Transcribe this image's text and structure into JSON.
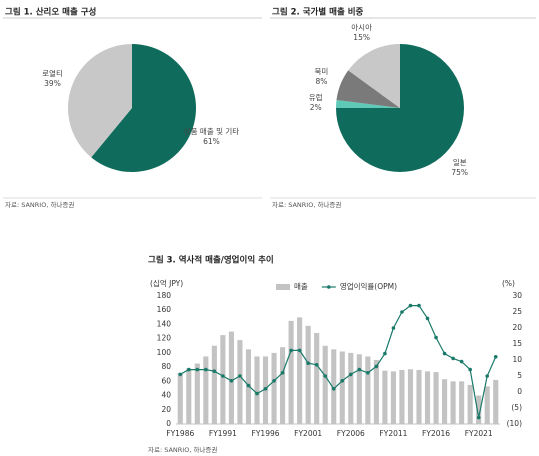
{
  "chart_data": [
    {
      "type": "pie",
      "title": "그림 1. 산리오 매출 구성",
      "source": "자료: SANRIO, 하나증권",
      "categories": [
        "상품 매출 및 기타",
        "로열티"
      ],
      "values": [
        61,
        39
      ],
      "value_labels": [
        "61%",
        "39%"
      ],
      "colors": [
        "#0f6b5c",
        "#c8c8c8"
      ]
    },
    {
      "type": "pie",
      "title": "그림 2. 국가별 매출 비중",
      "source": "자료: SANRIO, 하나증권",
      "categories": [
        "일본",
        "유럽",
        "북미",
        "아시아"
      ],
      "values": [
        75,
        2,
        8,
        15
      ],
      "value_labels": [
        "75%",
        "2%",
        "8%",
        "15%"
      ],
      "colors": [
        "#0f6b5c",
        "#5fc9b8",
        "#7a7a7a",
        "#c8c8c8"
      ]
    },
    {
      "type": "bar-line",
      "title": "그림 3. 역사적 매출/영업이익 추이",
      "source": "자료: SANRIO, 하나증권",
      "ylabel": "(십억 JPY)",
      "y2label": "(%)",
      "categories": [
        "FY1986",
        null,
        null,
        null,
        null,
        "FY1991",
        null,
        null,
        null,
        null,
        "FY1996",
        null,
        null,
        null,
        null,
        "FY2001",
        null,
        null,
        null,
        null,
        "FY2006",
        null,
        null,
        null,
        null,
        "FY2011",
        null,
        null,
        null,
        null,
        "FY2016",
        null,
        null,
        null,
        null,
        "FY2021",
        null,
        null
      ],
      "series": [
        {
          "name": "매출",
          "color": "#c3c3c3",
          "values": [
            72,
            78,
            85,
            95,
            110,
            125,
            130,
            118,
            105,
            95,
            95,
            100,
            108,
            145,
            150,
            138,
            128,
            110,
            105,
            102,
            100,
            98,
            95,
            90,
            75,
            74,
            76,
            77,
            76,
            74,
            73,
            63,
            60,
            60,
            55,
            40,
            53,
            62
          ]
        },
        {
          "name": "영업이익률(OPM)",
          "color": "#1a7a6a",
          "axis": "y2",
          "values": [
            5.5,
            7,
            7,
            7,
            6.5,
            5,
            3.5,
            5,
            2,
            -0.5,
            1,
            3.5,
            6,
            13,
            13,
            9,
            8.5,
            5,
            1,
            3.5,
            5.5,
            7,
            6,
            8,
            12,
            20,
            25,
            27,
            27,
            23,
            17,
            12,
            10.5,
            9.5,
            7,
            -8,
            5,
            11
          ]
        }
      ],
      "ylim": [
        0,
        180
      ],
      "yticks": [
        0,
        20,
        40,
        60,
        80,
        100,
        120,
        140,
        160,
        180
      ],
      "y2lim": [
        -10,
        30
      ],
      "y2ticks": [
        {
          "value": -10,
          "label": "(10)"
        },
        {
          "value": -5,
          "label": "(5)"
        },
        0,
        5,
        10,
        15,
        20,
        25,
        30
      ]
    }
  ]
}
